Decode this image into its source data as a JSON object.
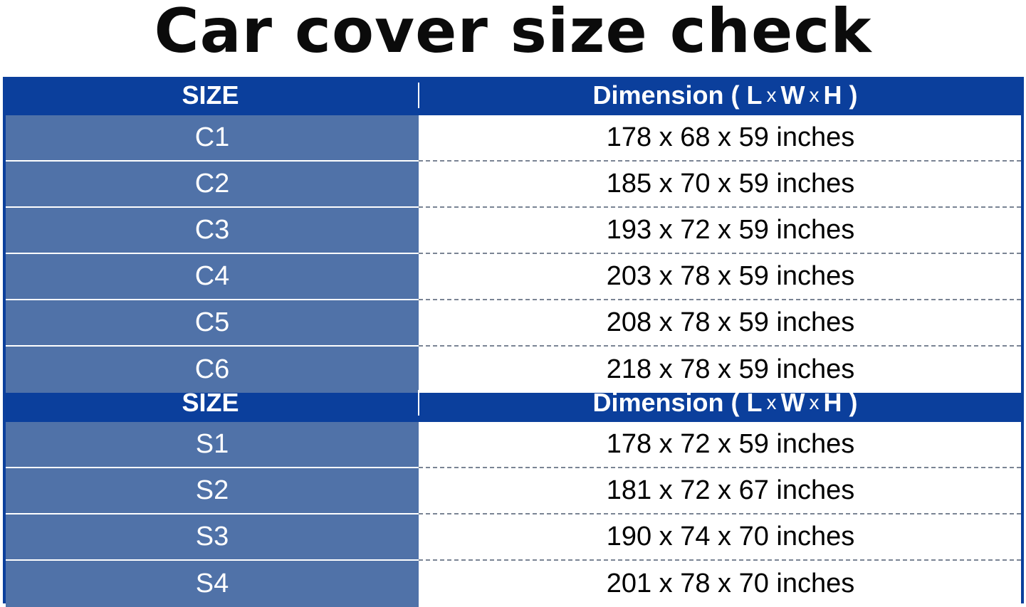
{
  "title": "Car cover size check",
  "header": {
    "size_label": "SIZE",
    "dimension_label": "Dimension (",
    "L": "L",
    "x": "x",
    "W": "W",
    "H": "H",
    "close": ")"
  },
  "colors": {
    "header_bg": "#0b3f9c",
    "size_cell_bg": "#5072a8"
  },
  "group_c": [
    {
      "size": "C1",
      "dimension": "178 x 68 x 59 inches"
    },
    {
      "size": "C2",
      "dimension": "185 x 70 x 59 inches"
    },
    {
      "size": "C3",
      "dimension": "193 x 72 x 59 inches"
    },
    {
      "size": "C4",
      "dimension": "203 x 78 x 59 inches"
    },
    {
      "size": "C5",
      "dimension": "208 x 78 x 59 inches"
    },
    {
      "size": "C6",
      "dimension": "218 x 78 x 59 inches"
    }
  ],
  "group_s": [
    {
      "size": "S1",
      "dimension": "178 x 72 x 59 inches"
    },
    {
      "size": "S2",
      "dimension": "181 x 72 x 67 inches"
    },
    {
      "size": "S3",
      "dimension": "190 x 74 x 70 inches"
    },
    {
      "size": "S4",
      "dimension": "201 x 78 x 70 inches"
    }
  ]
}
